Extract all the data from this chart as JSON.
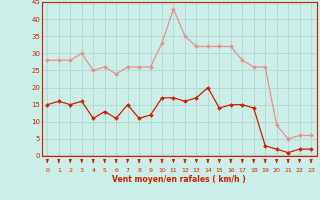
{
  "hours": [
    0,
    1,
    2,
    3,
    4,
    5,
    6,
    7,
    8,
    9,
    10,
    11,
    12,
    13,
    14,
    15,
    16,
    17,
    18,
    19,
    20,
    21,
    22,
    23
  ],
  "wind_avg": [
    15,
    16,
    15,
    16,
    11,
    13,
    11,
    15,
    11,
    12,
    17,
    17,
    16,
    17,
    20,
    14,
    15,
    15,
    14,
    3,
    2,
    1,
    2,
    2
  ],
  "wind_gust": [
    28,
    28,
    28,
    30,
    25,
    26,
    24,
    26,
    26,
    26,
    33,
    43,
    35,
    32,
    32,
    32,
    32,
    28,
    26,
    26,
    9,
    5,
    6,
    6
  ],
  "avg_color": "#cc2200",
  "gust_color": "#e89090",
  "bg_color": "#cceee8",
  "grid_color": "#aad4ce",
  "xlabel": "Vent moyen/en rafales ( km/h )",
  "ylim": [
    0,
    45
  ],
  "yticks": [
    0,
    5,
    10,
    15,
    20,
    25,
    30,
    35,
    40,
    45
  ],
  "xticks": [
    0,
    1,
    2,
    3,
    4,
    5,
    6,
    7,
    8,
    9,
    10,
    11,
    12,
    13,
    14,
    15,
    16,
    17,
    18,
    19,
    20,
    21,
    22,
    23
  ]
}
